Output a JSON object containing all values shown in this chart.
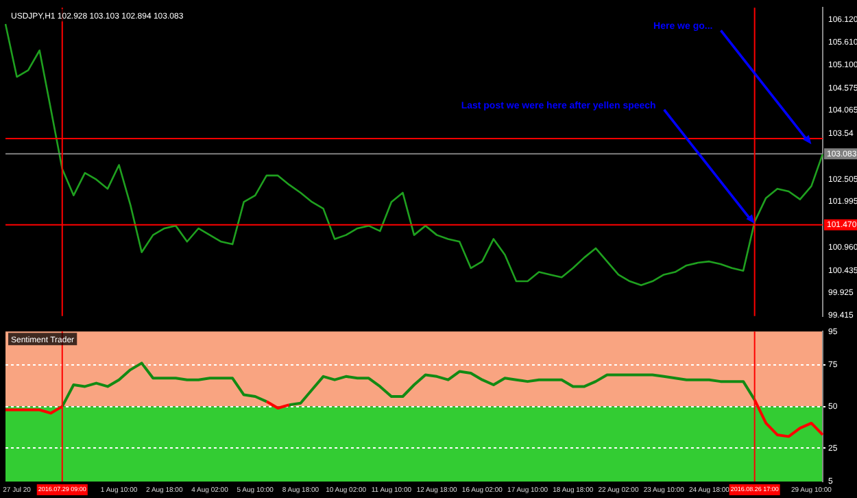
{
  "chart_data": [
    {
      "type": "line",
      "title": "USDJPY,H1 102.928 103.103 102.894 103.083",
      "categories": [
        null,
        "27 Jul 20",
        null,
        null,
        null,
        "2016.07.29 09:00",
        null,
        null,
        null,
        null,
        "1 Aug 10:00",
        null,
        null,
        null,
        "2 Aug 18:00",
        null,
        null,
        null,
        "4 Aug 02:00",
        null,
        null,
        null,
        "5 Aug 10:00",
        null,
        null,
        null,
        "8 Aug 18:00",
        null,
        null,
        null,
        "10 Aug 02:00",
        null,
        null,
        null,
        "11 Aug 10:00",
        null,
        null,
        null,
        "12 Aug 18:00",
        null,
        null,
        null,
        "16 Aug 02:00",
        null,
        null,
        null,
        "17 Aug 10:00",
        null,
        null,
        null,
        "18 Aug 18:00",
        null,
        null,
        null,
        "22 Aug 02:00",
        null,
        null,
        null,
        "23 Aug 10:00",
        null,
        null,
        null,
        "24 Aug 18:00",
        null,
        null,
        null,
        "2016.08.26 17:00",
        null,
        null,
        null,
        null,
        "29 Aug 10:00",
        null
      ],
      "series": [
        {
          "color": "#1fa01f",
          "values": [
            106.03,
            104.83,
            104.98,
            105.43,
            104.09,
            102.74,
            102.14,
            102.65,
            102.5,
            102.29,
            102.83,
            101.93,
            100.85,
            101.24,
            101.39,
            101.45,
            101.09,
            101.39,
            101.24,
            101.09,
            101.03,
            101.99,
            102.14,
            102.59,
            102.59,
            102.38,
            102.2,
            101.99,
            101.84,
            101.15,
            101.24,
            101.39,
            101.45,
            101.33,
            101.99,
            102.2,
            101.24,
            101.45,
            101.24,
            101.15,
            101.09,
            100.49,
            100.64,
            101.15,
            100.79,
            100.19,
            100.19,
            100.4,
            100.34,
            100.28,
            100.49,
            100.73,
            100.94,
            100.64,
            100.34,
            100.19,
            100.1,
            100.19,
            100.34,
            100.4,
            100.55,
            100.61,
            100.64,
            100.58,
            100.49,
            100.43,
            101.54,
            102.08,
            102.29,
            102.23,
            102.05,
            102.35,
            103.08
          ]
        }
      ],
      "ylim": [
        99.4,
        106.4
      ],
      "yticks": [
        99.415,
        99.925,
        100.435,
        {
          "value": 100.96,
          "label": "100.960"
        },
        101.995,
        102.505,
        103.54,
        104.065,
        104.575,
        {
          "value": 105.1,
          "label": "105.100"
        },
        {
          "value": 105.61,
          "label": "105.610"
        },
        {
          "value": 106.12,
          "label": "106.120"
        }
      ],
      "ref_lines": [
        {
          "axis": "y",
          "value": 103.43,
          "color": "#ff0000"
        },
        {
          "axis": "y",
          "value": 101.47,
          "label": "101.470",
          "color": "#ff0000"
        },
        {
          "axis": "y",
          "value": 103.083,
          "label": "103.083",
          "color": "#808080"
        },
        {
          "axis": "x",
          "value": "2016.07.29 09:00",
          "color": "#ff0000"
        },
        {
          "axis": "x",
          "value": "2016.08.26 17:00",
          "color": "#ff0000"
        }
      ],
      "annotations": [
        {
          "text": "Last post we were here after yellen speech",
          "x": "2016.08.26 17:00",
          "y": 101.5
        },
        {
          "text": "Here we go...",
          "x": "29 Aug 10:00",
          "y": 103.3
        }
      ],
      "tick_labels": "y",
      "grid": false,
      "legend": false
    },
    {
      "type": "line",
      "title": "Sentiment Trader",
      "categories": [
        null,
        "27 Jul 20",
        null,
        null,
        null,
        "2016.07.29 09:00",
        null,
        null,
        null,
        null,
        "1 Aug 10:00",
        null,
        null,
        null,
        "2 Aug 18:00",
        null,
        null,
        null,
        "4 Aug 02:00",
        null,
        null,
        null,
        "5 Aug 10:00",
        null,
        null,
        null,
        "8 Aug 18:00",
        null,
        null,
        null,
        "10 Aug 02:00",
        null,
        null,
        null,
        "11 Aug 10:00",
        null,
        null,
        null,
        "12 Aug 18:00",
        null,
        null,
        null,
        "16 Aug 02:00",
        null,
        null,
        null,
        "17 Aug 10:00",
        null,
        null,
        null,
        "18 Aug 18:00",
        null,
        null,
        null,
        "22 Aug 02:00",
        null,
        null,
        null,
        "23 Aug 10:00",
        null,
        null,
        null,
        "24 Aug 18:00",
        null,
        null,
        null,
        "2016.08.26 17:00",
        null,
        null,
        null,
        null,
        "29 Aug 10:00",
        null
      ],
      "series": [
        {
          "color": "#138a13",
          "values": [
            null,
            null,
            null,
            null,
            null,
            50,
            63,
            62,
            64,
            62,
            66,
            72,
            76,
            67,
            67,
            67,
            66,
            66,
            67,
            67,
            67,
            57,
            56,
            53,
            null,
            51,
            52,
            60,
            68,
            66,
            68,
            67,
            67,
            62,
            56,
            56,
            63,
            69,
            68,
            66,
            71,
            70,
            66,
            63,
            67,
            66,
            65,
            66,
            66,
            66,
            62,
            62,
            65,
            69,
            69,
            69,
            69,
            69,
            68,
            67,
            66,
            66,
            66,
            65,
            65,
            65,
            54,
            null,
            null,
            null,
            null,
            null,
            null
          ]
        },
        {
          "color": "#ff0000",
          "values": [
            48,
            48,
            48,
            48,
            46,
            50,
            null,
            null,
            null,
            null,
            null,
            null,
            null,
            null,
            null,
            null,
            null,
            null,
            null,
            null,
            null,
            null,
            null,
            53,
            49,
            51,
            null,
            null,
            null,
            null,
            null,
            null,
            null,
            null,
            null,
            null,
            null,
            null,
            null,
            null,
            null,
            null,
            null,
            null,
            null,
            null,
            null,
            null,
            null,
            null,
            null,
            null,
            null,
            null,
            null,
            null,
            null,
            null,
            null,
            null,
            null,
            null,
            null,
            null,
            null,
            null,
            54,
            40,
            33,
            32,
            37,
            40,
            33
          ]
        }
      ],
      "ylim": [
        5,
        95
      ],
      "yticks": [
        5,
        25,
        50,
        75,
        95
      ],
      "bands": [
        {
          "axis": "y",
          "from": 50,
          "to": 95,
          "color": "#f9a481"
        },
        {
          "axis": "y",
          "from": 5,
          "to": 50,
          "color": "#33cc33"
        }
      ],
      "ref_lines": [
        {
          "axis": "x",
          "value": "2016.07.29 09:00",
          "color": "#ff0000"
        },
        {
          "axis": "x",
          "value": "2016.08.26 17:00",
          "color": "#ff0000"
        }
      ],
      "grid": "y",
      "legend": false
    }
  ]
}
